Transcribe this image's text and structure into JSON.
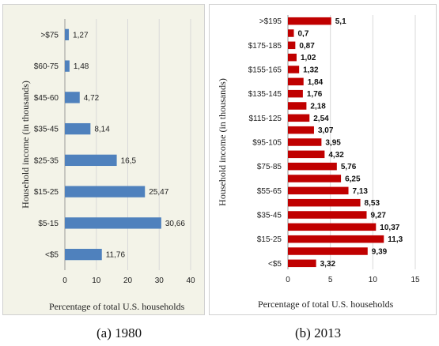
{
  "captions": {
    "a": "(a) 1980",
    "b": "(b) 2013"
  },
  "chart_data": [
    {
      "type": "bar",
      "orientation": "horizontal",
      "caption": "(a) 1980",
      "categories": [
        ">$75",
        "$60-75",
        "$45-60",
        "$35-45",
        "$25-35",
        "$15-25",
        "$5-15",
        "<$5"
      ],
      "values": [
        1.27,
        1.48,
        4.72,
        8.14,
        16.5,
        25.47,
        30.66,
        11.76
      ],
      "value_labels": [
        "1,27",
        "1,48",
        "4,72",
        "8,14",
        "16,5",
        "25,47",
        "30,66",
        "11,76"
      ],
      "xlabel": "Percentage of total U.S. households",
      "ylabel": "Household income (in thousands)",
      "xlim": [
        0,
        40
      ],
      "xticks": [
        "0",
        "10",
        "20",
        "30",
        "40"
      ],
      "grid": true,
      "color": "#4f81bd"
    },
    {
      "type": "bar",
      "orientation": "horizontal",
      "caption": "(b) 2013",
      "categories": [
        ">$195",
        "",
        "$175-185",
        "",
        "$155-165",
        "",
        "$135-145",
        "",
        "$115-125",
        "",
        "$95-105",
        "",
        "$75-85",
        "",
        "$55-65",
        "",
        "$35-45",
        "",
        "$15-25",
        "",
        "<$5"
      ],
      "values": [
        5.1,
        0.7,
        0.87,
        1.02,
        1.32,
        1.84,
        1.76,
        2.18,
        2.54,
        3.07,
        3.95,
        4.32,
        5.76,
        6.25,
        7.13,
        8.53,
        9.27,
        10.37,
        11.3,
        9.39,
        3.32
      ],
      "value_labels": [
        "5,1",
        "0,7",
        "0,87",
        "1,02",
        "1,32",
        "1,84",
        "1,76",
        "2,18",
        "2,54",
        "3,07",
        "3,95",
        "4,32",
        "5,76",
        "6,25",
        "7,13",
        "8,53",
        "9,27",
        "10,37",
        "11,3",
        "9,39",
        "3,32"
      ],
      "xlabel": "Percentage of total U.S. households",
      "ylabel": "Household income (in thousands)",
      "xlim": [
        0,
        15
      ],
      "xticks": [
        "0",
        "5",
        "10",
        "15"
      ],
      "grid": true,
      "color": "#c00000"
    }
  ]
}
